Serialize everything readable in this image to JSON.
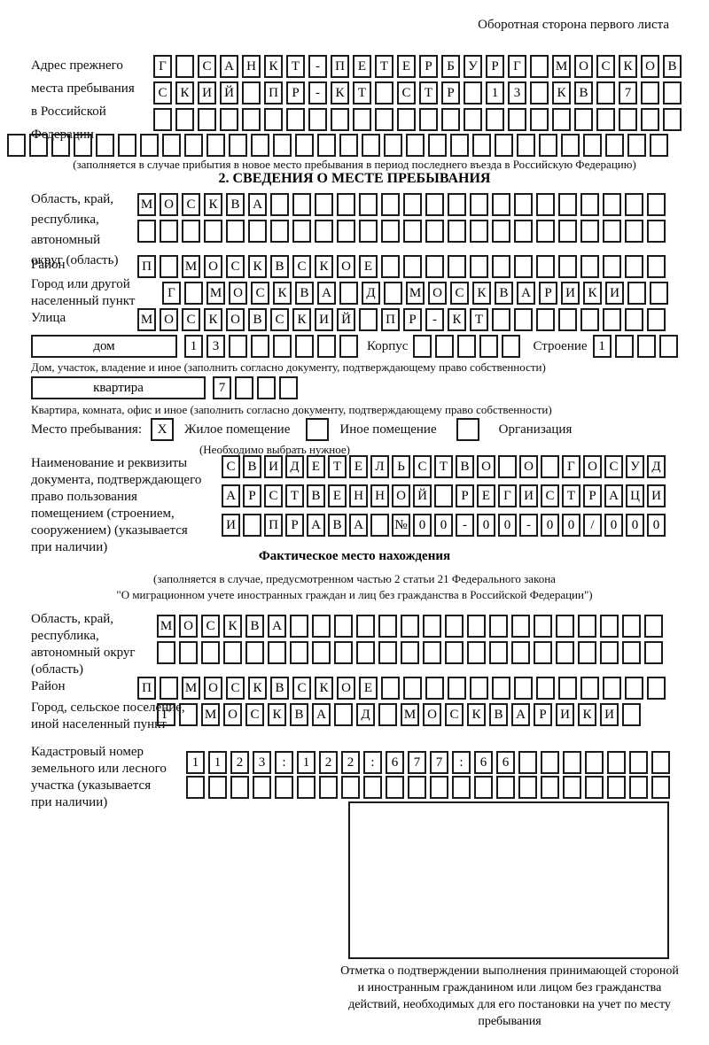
{
  "header": {
    "right_note": "Оборотная сторона первого листа"
  },
  "prev_address": {
    "label": "Адрес прежнего\nместа пребывания\nв Российской\nФедерации",
    "rows": [
      {
        "len": 24,
        "text": "Г САНКТ-ПЕТЕРБУРГ МОСКОВ"
      },
      {
        "len": 24,
        "text": "СКИЙ ПР-КТ СТР 13 КВ 7"
      },
      {
        "len": 24,
        "text": ""
      },
      {
        "len": 30,
        "text": ""
      }
    ],
    "note": "(заполняется в случае прибытия в новое место пребывания в период последнего въезда в Российскую Федерацию)"
  },
  "stay_info": {
    "title": "2. СВЕДЕНИЯ О МЕСТЕ ПРЕБЫВАНИЯ",
    "region": {
      "label": "Область, край,\nреспублика,\nавтономный\nокруг (область)",
      "rows": [
        {
          "len": 24,
          "text": "МОСКВА"
        },
        {
          "len": 24,
          "text": ""
        }
      ]
    },
    "district": {
      "label": "Район",
      "row": {
        "len": 24,
        "text": "П МОСКВСКОЕ"
      }
    },
    "city": {
      "label": "Город или другой\nнаселенный пункт",
      "row": {
        "len": 23,
        "text": "Г МОСКВА Д МОСКВАРИКИ"
      }
    },
    "street": {
      "label": "Улица",
      "row": {
        "len": 24,
        "text": "МОСКОВСКИЙ ПР-КТ"
      }
    },
    "house": {
      "box_label": "дом",
      "cells": {
        "len": 8,
        "text": "13"
      },
      "korpus_label": "Корпус",
      "korpus_cells": {
        "len": 5,
        "text": ""
      },
      "stroenie_label": "Строение",
      "stroenie_cells": {
        "len": 4,
        "text": "1"
      }
    },
    "house_note": "Дом, участок, владение и иное (заполнить согласно документу, подтверждающему право собственности)",
    "apartment": {
      "box_label": "квартира",
      "cells": {
        "len": 4,
        "text": "7"
      }
    },
    "apartment_note": "Квартира, комната, офис и иное (заполнить согласно документу, подтверждающему право собственности)",
    "stay_type": {
      "label": "Место пребывания:",
      "options": [
        {
          "label": "Жилое помещение",
          "mark": "X"
        },
        {
          "label": "Иное помещение",
          "mark": ""
        },
        {
          "label": "Организация",
          "mark": ""
        }
      ],
      "note": "(Необходимо выбрать нужное)"
    },
    "document": {
      "label": "Наименование и реквизиты\nдокумента, подтверждающего\nправо пользования\nпомещением (строением,\nсооружением) (указывается\nпри наличии)",
      "rows": [
        {
          "len": 21,
          "text": "СВИДЕТЕЛЬСТВО О ГОСУД"
        },
        {
          "len": 21,
          "text": "АРСТВЕННОЙ РЕГИСТРАЦИ"
        },
        {
          "len": 21,
          "text": "И ПРАВА №00-00-00/000"
        }
      ]
    }
  },
  "actual_location": {
    "title": "Фактическое место нахождения",
    "note_line1": "(заполняется в случае, предусмотренном частью 2 статьи 21 Федерального закона",
    "note_line2": "\"О миграционном учете иностранных граждан и лиц без гражданства в Российской Федерации\")",
    "region": {
      "label": "Область, край,\nреспублика,\nавтономный округ\n(область)",
      "rows": [
        {
          "len": 23,
          "text": "МОСКВА"
        },
        {
          "len": 23,
          "text": ""
        }
      ]
    },
    "district": {
      "label": "Район",
      "row": {
        "len": 24,
        "text": "П МОСКВСКОЕ"
      }
    },
    "city": {
      "label": "Город, сельское поселение,\nиной населенный пункт",
      "row": {
        "len": 22,
        "text": "Г МОСКВА Д МОСКВАРИКИ"
      }
    },
    "cadastral": {
      "label": "Кадастровый номер\nземельного или лесного\nучастка (указывается\nпри наличии)",
      "rows": [
        {
          "len": 22,
          "text": "1123:122:677:66"
        },
        {
          "len": 22,
          "text": ""
        }
      ]
    },
    "stamp_note": "Отметка о подтверждении выполнения принимающей стороной и иностранным гражданином или лицом без гражданства действий, необходимых для его постановки на учет по месту пребывания"
  }
}
